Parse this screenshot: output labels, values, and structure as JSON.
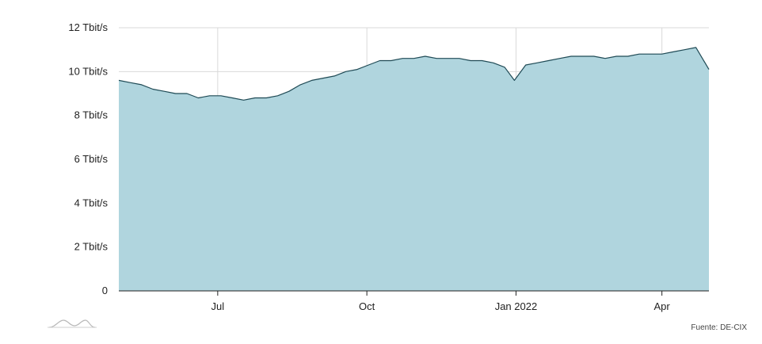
{
  "chart_data": {
    "type": "area",
    "title": "",
    "xlabel": "",
    "ylabel": "",
    "unit": "Tbit/s",
    "ylim": [
      0,
      12
    ],
    "xlim": [
      "2021-05-01",
      "2022-04-30"
    ],
    "y_ticks": [
      {
        "value": 0,
        "label": "0"
      },
      {
        "value": 2,
        "label": "2 Tbit/s"
      },
      {
        "value": 4,
        "label": "4 Tbit/s"
      },
      {
        "value": 6,
        "label": "6 Tbit/s"
      },
      {
        "value": 8,
        "label": "8 Tbit/s"
      },
      {
        "value": 10,
        "label": "10 Tbit/s"
      },
      {
        "value": 12,
        "label": "12 Tbit/s"
      }
    ],
    "x_ticks": [
      {
        "value": "2021-07-01",
        "label": "Jul"
      },
      {
        "value": "2021-10-01",
        "label": "Oct"
      },
      {
        "value": "2022-01-01",
        "label": "Jan 2022"
      },
      {
        "value": "2022-04-01",
        "label": "Apr"
      }
    ],
    "grid": true,
    "legend": "none",
    "colors": {
      "fill": "#b0d5de",
      "line": "#1f4a55",
      "grid": "#d9d9d9",
      "axis": "#222222",
      "text": "#222222"
    },
    "series": [
      {
        "x": [
          "2021-05-01",
          "2021-05-08",
          "2021-05-15",
          "2021-05-22",
          "2021-05-29",
          "2021-06-05",
          "2021-06-12",
          "2021-06-19",
          "2021-06-26",
          "2021-07-03",
          "2021-07-10",
          "2021-07-17",
          "2021-07-24",
          "2021-07-31",
          "2021-08-07",
          "2021-08-14",
          "2021-08-21",
          "2021-08-28",
          "2021-09-04",
          "2021-09-11",
          "2021-09-18",
          "2021-09-25",
          "2021-10-02",
          "2021-10-09",
          "2021-10-16",
          "2021-10-23",
          "2021-10-30",
          "2021-11-06",
          "2021-11-13",
          "2021-11-20",
          "2021-11-27",
          "2021-12-04",
          "2021-12-11",
          "2021-12-18",
          "2021-12-25",
          "2021-12-31",
          "2022-01-07",
          "2022-01-14",
          "2022-01-21",
          "2022-01-28",
          "2022-02-04",
          "2022-02-11",
          "2022-02-18",
          "2022-02-25",
          "2022-03-04",
          "2022-03-11",
          "2022-03-18",
          "2022-03-25",
          "2022-04-01",
          "2022-04-08",
          "2022-04-15",
          "2022-04-22",
          "2022-04-30"
        ],
        "values": [
          9.6,
          9.5,
          9.4,
          9.2,
          9.1,
          9.0,
          9.0,
          8.8,
          8.9,
          8.9,
          8.8,
          8.7,
          8.8,
          8.8,
          8.9,
          9.1,
          9.4,
          9.6,
          9.7,
          9.8,
          10.0,
          10.1,
          10.3,
          10.5,
          10.5,
          10.6,
          10.6,
          10.7,
          10.6,
          10.6,
          10.6,
          10.5,
          10.5,
          10.4,
          10.2,
          9.6,
          10.3,
          10.4,
          10.5,
          10.6,
          10.7,
          10.7,
          10.7,
          10.6,
          10.7,
          10.7,
          10.8,
          10.8,
          10.8,
          10.9,
          11.0,
          11.1,
          10.1
        ]
      }
    ]
  },
  "source": {
    "text": "Fuente: DE-CIX"
  }
}
